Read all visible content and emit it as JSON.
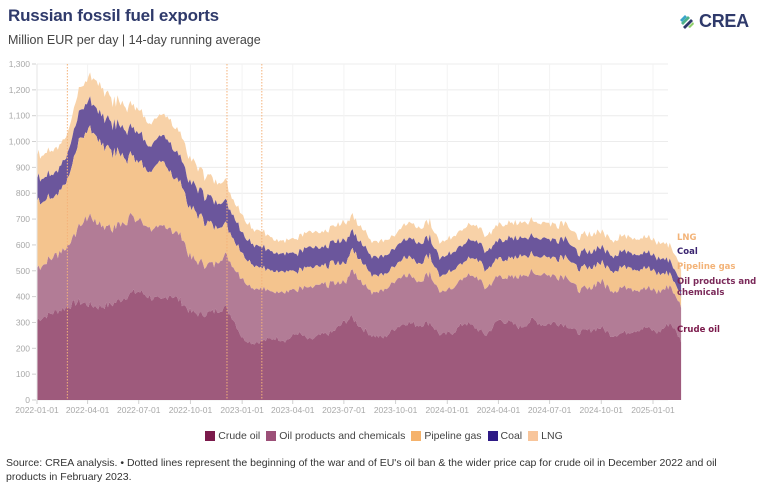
{
  "header": {
    "title": "Russian fossil fuel exports",
    "subtitle": "Million EUR per day | 14-day running average",
    "logo_text": "CREA",
    "logo_icon": "crea-leaf-logo-icon"
  },
  "colors": {
    "title": "#2f3a6b",
    "crude_oil": "#9e5a7c",
    "oil_products": "#b27c96",
    "pipeline_gas": "#f4c48e",
    "coal": "#6b569c",
    "lng": "#f8d2a8",
    "event_line": "#f4b27a",
    "legend_crude_oil": "#7b1a4b",
    "legend_oil_products": "#9c5078",
    "legend_pipeline_gas": "#f5b26b",
    "legend_coal": "#2e1a86",
    "legend_lng": "#f8c59b",
    "label_lng": "#f3b378",
    "label_coal": "#3a2470",
    "label_pipeline_gas": "#f3b378",
    "label_oil_products": "#7b2a5a",
    "label_crude_oil": "#7b1a4b"
  },
  "chart_data": {
    "type": "area",
    "stacked": true,
    "title": "Russian fossil fuel exports",
    "subtitle": "Million EUR per day | 14-day running average",
    "xlabel": "",
    "ylabel": "",
    "ylim": [
      0,
      1300
    ],
    "xlim": [
      "2022-01-01",
      "2025-02-20"
    ],
    "grid": true,
    "y_ticks": [
      0,
      100,
      200,
      300,
      400,
      500,
      600,
      700,
      800,
      900,
      1000,
      1100,
      1200,
      1300
    ],
    "y_tick_labels": [
      "0",
      "100",
      "200",
      "300",
      "400",
      "500",
      "600",
      "700",
      "800",
      "900",
      "1,000",
      "1,100",
      "1,200",
      "1,300"
    ],
    "x_ticks": [
      "2022-01-01",
      "2022-04-01",
      "2022-07-01",
      "2022-10-01",
      "2023-01-01",
      "2023-04-01",
      "2023-07-01",
      "2023-10-01",
      "2024-01-01",
      "2024-04-01",
      "2024-07-01",
      "2024-10-01",
      "2025-01-01"
    ],
    "event_lines": [
      "2022-02-24",
      "2022-12-05",
      "2023-02-05"
    ],
    "legend_position": "bottom",
    "x": [
      "2022-01-01",
      "2022-02-01",
      "2022-02-24",
      "2022-03-15",
      "2022-04-01",
      "2022-04-20",
      "2022-05-15",
      "2022-06-15",
      "2022-07-01",
      "2022-07-20",
      "2022-08-10",
      "2022-08-25",
      "2022-09-15",
      "2022-10-01",
      "2022-10-20",
      "2022-11-10",
      "2022-12-01",
      "2022-12-15",
      "2023-01-01",
      "2023-01-20",
      "2023-02-10",
      "2023-03-01",
      "2023-03-20",
      "2023-04-10",
      "2023-05-01",
      "2023-05-20",
      "2023-06-10",
      "2023-07-01",
      "2023-07-15",
      "2023-08-01",
      "2023-08-20",
      "2023-09-10",
      "2023-10-01",
      "2023-10-20",
      "2023-11-10",
      "2023-12-01",
      "2023-12-20",
      "2024-01-10",
      "2024-02-01",
      "2024-02-20",
      "2024-03-10",
      "2024-04-01",
      "2024-04-20",
      "2024-05-10",
      "2024-06-01",
      "2024-06-20",
      "2024-07-10",
      "2024-08-01",
      "2024-08-20",
      "2024-09-10",
      "2024-10-01",
      "2024-10-20",
      "2024-11-10",
      "2024-12-01",
      "2024-12-20",
      "2025-01-10",
      "2025-02-01",
      "2025-02-20"
    ],
    "series": [
      {
        "name": "Crude oil",
        "values": [
          310,
          340,
          360,
          380,
          370,
          360,
          370,
          410,
          420,
          400,
          380,
          410,
          380,
          340,
          330,
          340,
          360,
          320,
          240,
          220,
          230,
          240,
          230,
          260,
          230,
          250,
          260,
          300,
          320,
          280,
          250,
          240,
          280,
          300,
          290,
          300,
          250,
          260,
          300,
          280,
          250,
          310,
          300,
          280,
          310,
          290,
          300,
          290,
          260,
          270,
          280,
          250,
          260,
          270,
          280,
          260,
          300,
          230
        ]
      },
      {
        "name": "Oil products and chemicals",
        "values": [
          200,
          220,
          230,
          280,
          340,
          330,
          290,
          300,
          280,
          270,
          280,
          260,
          250,
          210,
          200,
          180,
          200,
          200,
          230,
          220,
          200,
          180,
          190,
          170,
          200,
          190,
          190,
          150,
          180,
          180,
          170,
          180,
          190,
          190,
          170,
          190,
          160,
          170,
          180,
          200,
          180,
          170,
          170,
          200,
          180,
          200,
          180,
          190,
          170,
          160,
          180,
          170,
          180,
          160,
          150,
          160,
          140,
          130
        ]
      },
      {
        "name": "Pipeline gas",
        "values": [
          260,
          230,
          250,
          330,
          340,
          330,
          300,
          230,
          230,
          220,
          250,
          220,
          200,
          190,
          180,
          150,
          120,
          110,
          100,
          90,
          80,
          80,
          80,
          70,
          80,
          70,
          80,
          70,
          80,
          80,
          70,
          60,
          60,
          70,
          70,
          70,
          60,
          70,
          60,
          70,
          70,
          70,
          70,
          80,
          70,
          70,
          70,
          80,
          80,
          80,
          70,
          80,
          80,
          80,
          80,
          70,
          50,
          40
        ]
      },
      {
        "name": "Coal",
        "values": [
          90,
          90,
          100,
          110,
          110,
          110,
          110,
          110,
          110,
          100,
          100,
          110,
          100,
          100,
          100,
          100,
          90,
          90,
          80,
          80,
          80,
          70,
          70,
          70,
          80,
          70,
          80,
          90,
          70,
          70,
          70,
          70,
          70,
          70,
          80,
          70,
          70,
          70,
          70,
          70,
          70,
          70,
          80,
          70,
          70,
          70,
          70,
          70,
          60,
          60,
          60,
          60,
          60,
          60,
          60,
          60,
          50,
          50
        ]
      },
      {
        "name": "LNG",
        "values": [
          90,
          90,
          80,
          90,
          90,
          110,
          90,
          90,
          90,
          90,
          80,
          90,
          90,
          90,
          80,
          80,
          80,
          60,
          70,
          60,
          60,
          50,
          50,
          60,
          60,
          60,
          60,
          70,
          60,
          60,
          60,
          60,
          50,
          60,
          60,
          60,
          60,
          60,
          60,
          60,
          60,
          60,
          60,
          60,
          60,
          60,
          60,
          60,
          60,
          70,
          60,
          60,
          60,
          60,
          60,
          60,
          60,
          60
        ]
      }
    ],
    "series_labels": [
      "LNG",
      "Coal",
      "Pipeline gas",
      "Oil products and chemicals",
      "Crude oil"
    ]
  },
  "legend": {
    "items": [
      {
        "label": "Crude oil"
      },
      {
        "label": "Oil products and chemicals"
      },
      {
        "label": "Pipeline gas"
      },
      {
        "label": "Coal"
      },
      {
        "label": "LNG"
      }
    ]
  },
  "series_labels": {
    "lng": "LNG",
    "coal": "Coal",
    "pipeline_gas": "Pipeline gas",
    "oil_products_line1": "Oil products and",
    "oil_products_line2": "chemicals",
    "crude_oil": "Crude oil"
  },
  "footer": {
    "source": "Source: CREA analysis. • Dotted lines represent the beginning of the war and of EU's oil ban & the wider price cap for crude oil in December 2022 and oil products in February 2023."
  }
}
